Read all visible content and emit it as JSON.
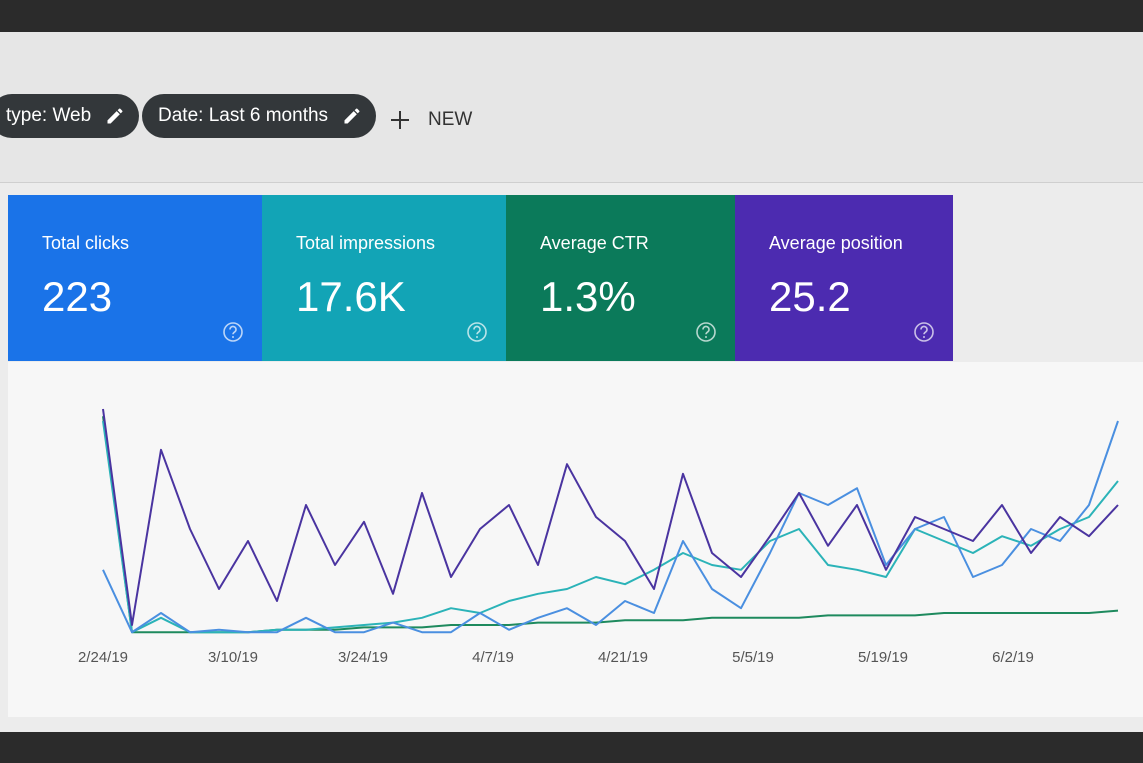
{
  "filters": [
    "type: Web",
    "Date: Last 6 months"
  ],
  "new_button": "NEW",
  "metrics": [
    {
      "label": "Total clicks",
      "value": "223",
      "color": "#1a73e8",
      "line_color": "#4a8fe0",
      "series": [
        28,
        2,
        10,
        2,
        3,
        2,
        2,
        8,
        2,
        2,
        6,
        2,
        2,
        10,
        3,
        8,
        12,
        5,
        15,
        10,
        40,
        20,
        12,
        35,
        60,
        55,
        62,
        30,
        45,
        50,
        25,
        30,
        45,
        40,
        55,
        90
      ]
    },
    {
      "label": "Total impressions",
      "value": "17.6K",
      "color": "#12a4b6",
      "line_color": "#2bb3b8",
      "series": [
        90,
        2,
        8,
        2,
        2,
        2,
        3,
        3,
        4,
        5,
        6,
        8,
        12,
        10,
        15,
        18,
        20,
        25,
        22,
        28,
        35,
        30,
        28,
        40,
        45,
        30,
        28,
        25,
        45,
        40,
        35,
        42,
        38,
        45,
        50,
        65
      ]
    },
    {
      "label": "Average CTR",
      "value": "1.3%",
      "color": "#0b7a5a",
      "line_color": "#1e8a5e",
      "series": [
        92,
        2,
        2,
        2,
        2,
        2,
        3,
        3,
        3,
        4,
        4,
        4,
        5,
        5,
        5,
        6,
        6,
        6,
        7,
        7,
        7,
        8,
        8,
        8,
        8,
        9,
        9,
        9,
        9,
        10,
        10,
        10,
        10,
        10,
        10,
        11
      ]
    },
    {
      "label": "Average position",
      "value": "25.2",
      "color": "#4c2bb0",
      "line_color": "#4a34a0",
      "series": [
        95,
        5,
        78,
        45,
        20,
        40,
        15,
        55,
        30,
        48,
        18,
        60,
        25,
        45,
        55,
        30,
        72,
        50,
        40,
        20,
        68,
        35,
        25,
        42,
        60,
        38,
        55,
        28,
        50,
        45,
        40,
        55,
        35,
        50,
        42,
        55
      ]
    }
  ],
  "chart": {
    "type": "line",
    "x_labels": [
      "2/24/19",
      "3/10/19",
      "3/24/19",
      "4/7/19",
      "4/21/19",
      "5/5/19",
      "5/19/19",
      "6/2/19"
    ]
  }
}
